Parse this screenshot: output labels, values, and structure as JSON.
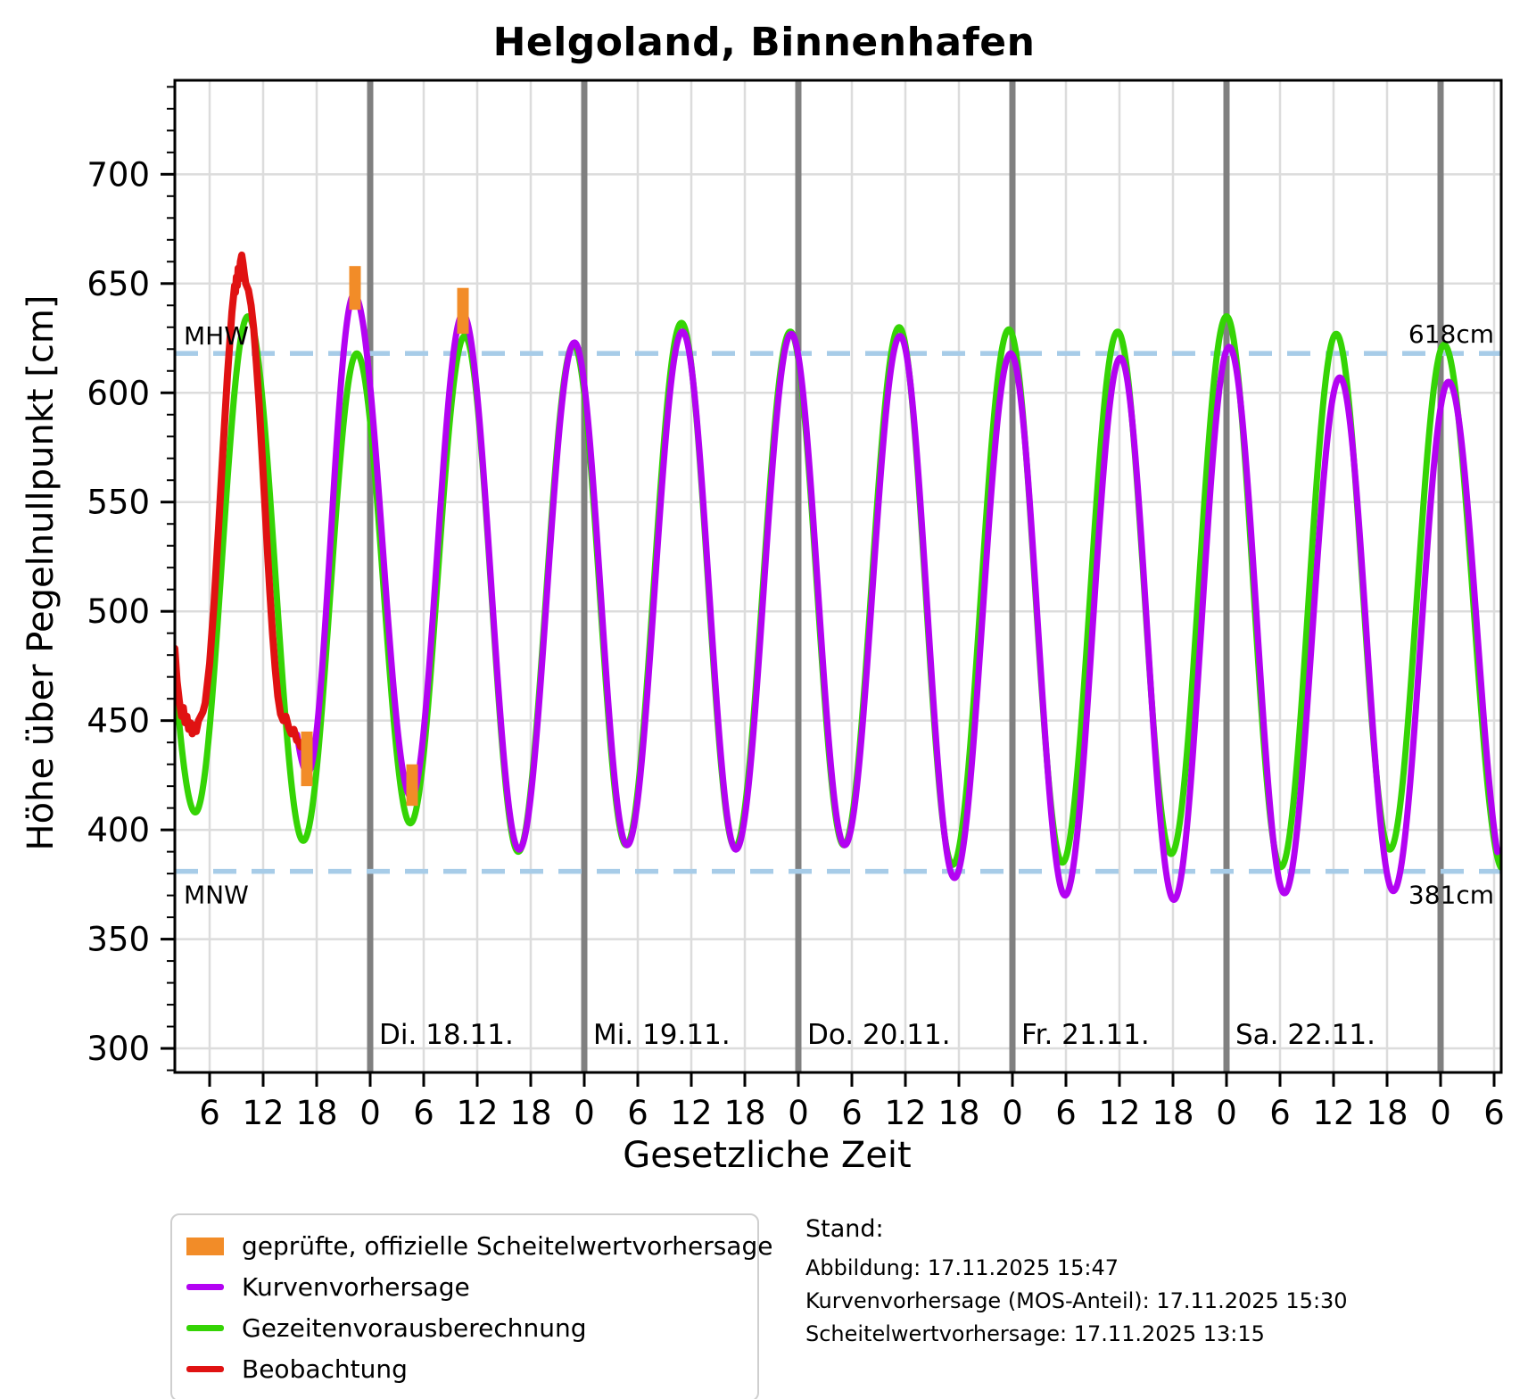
{
  "title": "Helgoland, Binnenhafen",
  "colors": {
    "orange": "#f28c28",
    "purple": "#b303f2",
    "green": "#35d405",
    "red": "#e01212",
    "reference_dash": "#a7cce8",
    "grid": "#dcdcdc",
    "midnight_line": "#808080",
    "spine": "#000000"
  },
  "chart_data": {
    "type": "line",
    "title": "Helgoland, Binnenhafen",
    "xlabel": "Gesetzliche Zeit",
    "ylabel": "Höhe über Pegelnullpunkt [cm]",
    "x_time_reference": "hours since Mo. 17.11. 00:00",
    "xlim_hours": [
      2.1,
      150.8
    ],
    "ylim": [
      289,
      743
    ],
    "y_tick_values": [
      300,
      350,
      400,
      450,
      500,
      550,
      600,
      650,
      700
    ],
    "y_minor_tick_step": 10,
    "x_tick_step_hours": 6,
    "grid": true,
    "legend_position": "bottom-left",
    "day_labels": [
      {
        "label": "Di. 18.11.",
        "t": 24
      },
      {
        "label": "Mi. 19.11.",
        "t": 48
      },
      {
        "label": "Do. 20.11.",
        "t": 72
      },
      {
        "label": "Fr. 21.11.",
        "t": 96
      },
      {
        "label": "Sa. 22.11.",
        "t": 120
      }
    ],
    "midnight_lines_t": [
      24,
      48,
      72,
      96,
      120,
      144
    ],
    "reference_lines": [
      {
        "name": "MHW",
        "value_cm": 618,
        "label_left": "MHW",
        "label_right": "618cm"
      },
      {
        "name": "MNW",
        "value_cm": 381,
        "label_left": "MNW",
        "label_right": "381cm"
      }
    ],
    "series": [
      {
        "name": "Gezeitenvorausberechnung",
        "type": "tidal_extrema",
        "color_key": "green",
        "clip_t": [
          2.1,
          150.8
        ],
        "extrema_t_cm": [
          [
            -2.0,
            630
          ],
          [
            4.4,
            408
          ],
          [
            10.3,
            635
          ],
          [
            16.5,
            395
          ],
          [
            22.5,
            618
          ],
          [
            28.5,
            403
          ],
          [
            34.6,
            626
          ],
          [
            40.6,
            390
          ],
          [
            46.8,
            622
          ],
          [
            52.7,
            393
          ],
          [
            58.9,
            632
          ],
          [
            64.9,
            392
          ],
          [
            71.1,
            628
          ],
          [
            77.1,
            393
          ],
          [
            83.3,
            630
          ],
          [
            89.3,
            384
          ],
          [
            95.6,
            629
          ],
          [
            101.6,
            385
          ],
          [
            107.8,
            628
          ],
          [
            113.8,
            389
          ],
          [
            120.0,
            635
          ],
          [
            126.1,
            383
          ],
          [
            132.3,
            627
          ],
          [
            138.3,
            391
          ],
          [
            144.4,
            622
          ],
          [
            151.0,
            382
          ]
        ]
      },
      {
        "name": "Kurvenvorhersage",
        "type": "tidal_extrema",
        "color_key": "purple",
        "clip_t": [
          15.8,
          150.4
        ],
        "extrema_t_cm": [
          [
            10.4,
            648
          ],
          [
            17.0,
            426
          ],
          [
            22.2,
            645
          ],
          [
            28.6,
            415
          ],
          [
            34.4,
            636
          ],
          [
            40.7,
            391
          ],
          [
            46.9,
            623
          ],
          [
            52.8,
            393
          ],
          [
            59.0,
            628
          ],
          [
            65.0,
            391
          ],
          [
            71.2,
            627
          ],
          [
            77.2,
            393
          ],
          [
            83.4,
            626
          ],
          [
            89.5,
            378
          ],
          [
            95.8,
            618
          ],
          [
            101.9,
            370
          ],
          [
            108.1,
            616
          ],
          [
            114.1,
            368
          ],
          [
            120.3,
            621
          ],
          [
            126.5,
            371
          ],
          [
            132.7,
            607
          ],
          [
            138.7,
            372
          ],
          [
            144.9,
            605
          ],
          [
            151.3,
            378
          ]
        ]
      },
      {
        "name": "Beobachtung",
        "type": "points",
        "color_key": "red",
        "points_t_cm": [
          [
            2.1,
            483
          ],
          [
            2.35,
            468
          ],
          [
            2.6,
            459
          ],
          [
            2.85,
            452
          ],
          [
            3.05,
            456
          ],
          [
            3.25,
            449
          ],
          [
            3.45,
            452
          ],
          [
            3.65,
            446
          ],
          [
            3.85,
            449
          ],
          [
            4.05,
            444
          ],
          [
            4.25,
            448
          ],
          [
            4.5,
            445
          ],
          [
            4.75,
            450
          ],
          [
            5.0,
            452
          ],
          [
            5.25,
            454
          ],
          [
            5.5,
            458
          ],
          [
            6.0,
            476
          ],
          [
            6.5,
            504
          ],
          [
            7.0,
            538
          ],
          [
            7.5,
            574
          ],
          [
            8.0,
            608
          ],
          [
            8.5,
            637
          ],
          [
            8.8,
            649
          ],
          [
            8.9,
            646
          ],
          [
            9.0,
            653
          ],
          [
            9.1,
            649
          ],
          [
            9.2,
            657
          ],
          [
            9.3,
            652
          ],
          [
            9.45,
            660
          ],
          [
            9.6,
            663
          ],
          [
            9.75,
            659
          ],
          [
            9.9,
            654
          ],
          [
            10.05,
            650
          ],
          [
            10.35,
            647
          ],
          [
            10.65,
            640
          ],
          [
            10.95,
            629
          ],
          [
            11.25,
            613
          ],
          [
            11.55,
            595
          ],
          [
            11.85,
            574
          ],
          [
            12.15,
            552
          ],
          [
            12.45,
            530
          ],
          [
            12.75,
            509
          ],
          [
            13.05,
            490
          ],
          [
            13.35,
            474
          ],
          [
            13.65,
            461
          ],
          [
            13.95,
            453
          ],
          [
            14.25,
            450
          ],
          [
            14.55,
            452
          ],
          [
            14.85,
            447
          ],
          [
            15.15,
            444
          ],
          [
            15.45,
            446
          ],
          [
            15.75,
            441
          ],
          [
            16.05,
            440
          ],
          [
            16.2,
            438
          ]
        ]
      }
    ],
    "peak_bars": {
      "name": "geprüfte, offizielle Scheitelwertvorhersage",
      "color_key": "orange",
      "bars": [
        {
          "t": 16.9,
          "from_cm": 420,
          "to_cm": 445
        },
        {
          "t": 22.3,
          "from_cm": 638,
          "to_cm": 658
        },
        {
          "t": 28.7,
          "from_cm": 411,
          "to_cm": 430
        },
        {
          "t": 34.4,
          "from_cm": 627,
          "to_cm": 648
        }
      ]
    }
  },
  "legend": {
    "items": [
      {
        "label": "geprüfte, offizielle Scheitelwertvorhersage",
        "swatch": "patch",
        "color_key": "orange"
      },
      {
        "label": "Kurvenvorhersage",
        "swatch": "line",
        "color_key": "purple"
      },
      {
        "label": "Gezeitenvorausberechnung",
        "swatch": "line",
        "color_key": "green"
      },
      {
        "label": "Beobachtung",
        "swatch": "line",
        "color_key": "red"
      }
    ]
  },
  "stand": {
    "heading": "Stand:",
    "lines": [
      "Abbildung: 17.11.2025 15:47",
      "Kurvenvorhersage (MOS-Anteil): 17.11.2025 15:30",
      "Scheitelwertvorhersage: 17.11.2025 13:15"
    ]
  }
}
